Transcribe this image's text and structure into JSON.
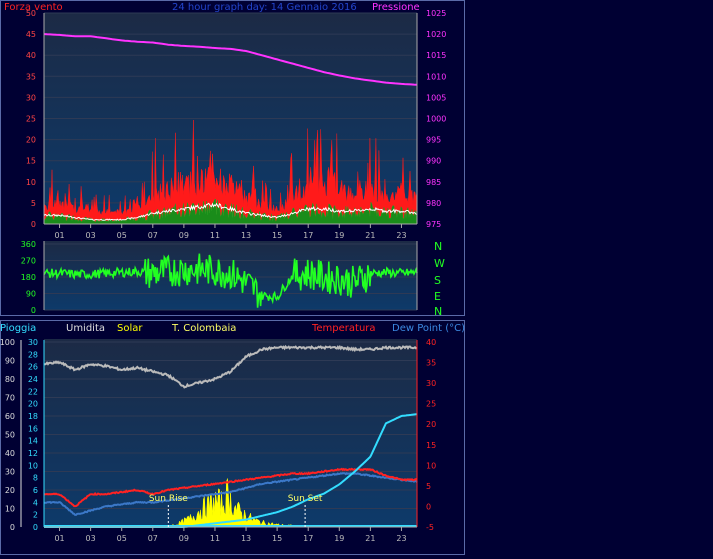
{
  "colors": {
    "page_bg": "#000033",
    "plot_top": "#1c2a45",
    "plot_bottom": "#0d3a6a",
    "wind_avg": "#ff1a1a",
    "wind_gust": "#ffffff",
    "wind_low": "#1a8c1a",
    "pressure": "#ff33ff",
    "direction": "#22ff22",
    "humidity": "#bbbbbb",
    "solar": "#ffff00",
    "temperature": "#ff2222",
    "dew_point": "#3b78c8",
    "rain": "#33ddff"
  },
  "header": {
    "wind_label": "Forza vento",
    "graph_title": "24 hour graph day: 14 Gennaio 2016",
    "pressure_label": "Pressione"
  },
  "compass": [
    "N",
    "W",
    "S",
    "E",
    "N"
  ],
  "bottom_legend": {
    "rain": "Pioggia",
    "humidity": "Umidita",
    "solar": "Solar",
    "station": "T. Colombaia",
    "temperature": "Temperatura",
    "dew_point": "Dew Point (°C)"
  },
  "annotations": {
    "sunrise": "Sun Rise",
    "sunset": "Sun Set"
  },
  "chart_data": [
    {
      "type": "area",
      "name": "wind_pressure",
      "x_ticks": [
        "01",
        "03",
        "05",
        "07",
        "09",
        "11",
        "13",
        "15",
        "17",
        "19",
        "21",
        "23"
      ],
      "y_left_ticks": [
        "0",
        "5",
        "10",
        "15",
        "20",
        "25",
        "30",
        "35",
        "40",
        "45",
        "50"
      ],
      "y_right_ticks": [
        "975",
        "980",
        "985",
        "990",
        "995",
        "1000",
        "1005",
        "1010",
        "1015",
        "1020",
        "1025"
      ],
      "ylim_left": [
        0,
        50
      ],
      "ylim_right": [
        975,
        1025
      ],
      "xlim": [
        0,
        24
      ],
      "series": [
        {
          "key": "pressure",
          "x": [
            0,
            1,
            2,
            3,
            4,
            5,
            6,
            7,
            8,
            9,
            10,
            11,
            12,
            13,
            14,
            15,
            16,
            17,
            18,
            19,
            20,
            21,
            22,
            23,
            24
          ],
          "values": [
            1020,
            1019.8,
            1019.5,
            1019.5,
            1019,
            1018.5,
            1018.2,
            1018,
            1017.5,
            1017.2,
            1017,
            1016.7,
            1016.5,
            1016,
            1015,
            1014,
            1013,
            1012,
            1011,
            1010.2,
            1009.5,
            1009,
            1008.5,
            1008.2,
            1008
          ]
        },
        {
          "key": "wind_gust",
          "x": [
            0,
            1,
            2,
            3,
            4,
            5,
            6,
            7,
            8,
            9,
            10,
            11,
            12,
            13,
            14,
            15,
            16,
            17,
            18,
            19,
            20,
            21,
            22,
            23,
            24
          ],
          "values": [
            14,
            12,
            10,
            9,
            8,
            10,
            12,
            20,
            24,
            26,
            28,
            28,
            22,
            16,
            12,
            10,
            18,
            26,
            24,
            22,
            20,
            22,
            20,
            18,
            16
          ]
        },
        {
          "key": "wind_avg",
          "x": [
            0,
            1,
            2,
            3,
            4,
            5,
            6,
            7,
            8,
            9,
            10,
            11,
            12,
            13,
            14,
            15,
            16,
            17,
            18,
            19,
            20,
            21,
            22,
            23,
            24
          ],
          "values": [
            5,
            5,
            4,
            4,
            3,
            3,
            4,
            7,
            9,
            10,
            11,
            12,
            10,
            7,
            5,
            4,
            7,
            10,
            10,
            9,
            8,
            9,
            8,
            8,
            7
          ]
        },
        {
          "key": "wind_low",
          "x": [
            0,
            1,
            2,
            3,
            4,
            5,
            6,
            7,
            8,
            9,
            10,
            11,
            12,
            13,
            14,
            15,
            16,
            17,
            18,
            19,
            20,
            21,
            22,
            23,
            24
          ],
          "values": [
            2,
            2,
            1.5,
            1,
            1,
            1,
            1.5,
            2.5,
            3,
            3.5,
            4,
            4.5,
            3.5,
            2.5,
            2,
            1.5,
            2.5,
            3.5,
            3.5,
            3,
            3,
            3.5,
            3,
            3,
            2.5
          ]
        }
      ]
    },
    {
      "type": "line",
      "name": "wind_direction",
      "y_ticks": [
        "360",
        "270",
        "180",
        "90",
        "0"
      ],
      "ylim": [
        0,
        360
      ],
      "xlim": [
        0,
        24
      ],
      "x": [
        0,
        1,
        2,
        3,
        4,
        5,
        6,
        7,
        8,
        9,
        10,
        11,
        12,
        13,
        14,
        15,
        16,
        17,
        18,
        19,
        20,
        21,
        22,
        23,
        24
      ],
      "values": [
        200,
        200,
        195,
        195,
        200,
        205,
        210,
        200,
        210,
        220,
        220,
        215,
        200,
        150,
        80,
        70,
        190,
        200,
        180,
        170,
        150,
        200,
        205,
        200,
        205
      ]
    },
    {
      "type": "line",
      "name": "weather_multi",
      "x_ticks": [
        "01",
        "03",
        "05",
        "07",
        "09",
        "11",
        "13",
        "15",
        "17",
        "19",
        "21",
        "23"
      ],
      "rain_ticks": [
        "0",
        "10",
        "20",
        "30",
        "40",
        "50",
        "60",
        "70",
        "80",
        "90",
        "100"
      ],
      "solar_ticks": [
        "0",
        "2",
        "4",
        "6",
        "8",
        "10",
        "12",
        "14",
        "16",
        "18",
        "20",
        "22",
        "24",
        "26",
        "28",
        "30"
      ],
      "temp_ticks": [
        "-5",
        "0",
        "5",
        "10",
        "15",
        "20",
        "25",
        "30",
        "35",
        "40"
      ],
      "ylim_rain": [
        0,
        100
      ],
      "ylim_solar": [
        0,
        30
      ],
      "ylim_temp": [
        -5,
        40
      ],
      "xlim": [
        0,
        24
      ],
      "series": [
        {
          "key": "humidity",
          "x": [
            0,
            1,
            2,
            3,
            4,
            5,
            6,
            7,
            8,
            9,
            10,
            11,
            12,
            13,
            14,
            15,
            16,
            17,
            18,
            19,
            20,
            21,
            22,
            23,
            24
          ],
          "values": [
            88,
            89,
            85,
            88,
            87,
            85,
            86,
            84,
            82,
            76,
            78,
            80,
            84,
            92,
            96,
            97,
            97,
            97,
            97,
            97,
            96,
            96,
            97,
            97,
            97
          ]
        },
        {
          "key": "temperature",
          "x": [
            0,
            1,
            2,
            3,
            4,
            5,
            6,
            7,
            8,
            9,
            10,
            11,
            12,
            13,
            14,
            15,
            16,
            17,
            18,
            19,
            20,
            21,
            22,
            23,
            24
          ],
          "values": [
            3,
            3,
            0,
            3,
            3,
            3.5,
            4,
            3,
            4,
            4.5,
            5,
            5.5,
            6,
            6.5,
            7,
            7.5,
            8,
            8,
            8.5,
            9,
            9,
            9,
            7.5,
            6.5,
            6.5
          ]
        },
        {
          "key": "dew_point",
          "x": [
            0,
            1,
            2,
            3,
            4,
            5,
            6,
            7,
            8,
            9,
            10,
            11,
            12,
            13,
            14,
            15,
            16,
            17,
            18,
            19,
            20,
            21,
            22,
            23,
            24
          ],
          "values": [
            1,
            1,
            -2,
            -1,
            0,
            0.5,
            1,
            1,
            1.5,
            2,
            2.5,
            3,
            3.5,
            4.5,
            5.5,
            6,
            6.5,
            7,
            7.5,
            8,
            8,
            7.5,
            7,
            6.5,
            6
          ]
        },
        {
          "key": "rain",
          "x": [
            0,
            1,
            2,
            3,
            4,
            5,
            6,
            7,
            8,
            9,
            10,
            11,
            12,
            13,
            14,
            15,
            16,
            17,
            18,
            19,
            20,
            21,
            22,
            23,
            24
          ],
          "values": [
            0,
            0,
            0,
            0,
            0,
            0,
            0,
            0,
            0,
            0,
            1,
            2,
            3,
            4,
            6,
            8,
            11,
            15,
            18,
            23,
            30,
            38,
            56,
            60,
            61
          ]
        },
        {
          "key": "solar",
          "x": [
            0,
            7.5,
            8.5,
            9.5,
            10,
            10.5,
            11,
            11.5,
            11.8,
            12.2,
            12.5,
            13,
            13.5,
            14,
            15,
            16,
            17,
            18,
            24
          ],
          "values": [
            0,
            0,
            0.5,
            2,
            3.5,
            4.5,
            5.5,
            5,
            7,
            4.5,
            3.5,
            2.5,
            1.5,
            1,
            0.5,
            0.3,
            0,
            0,
            0
          ]
        }
      ],
      "sunrise_hour": 8,
      "sunset_hour": 16.8
    }
  ]
}
